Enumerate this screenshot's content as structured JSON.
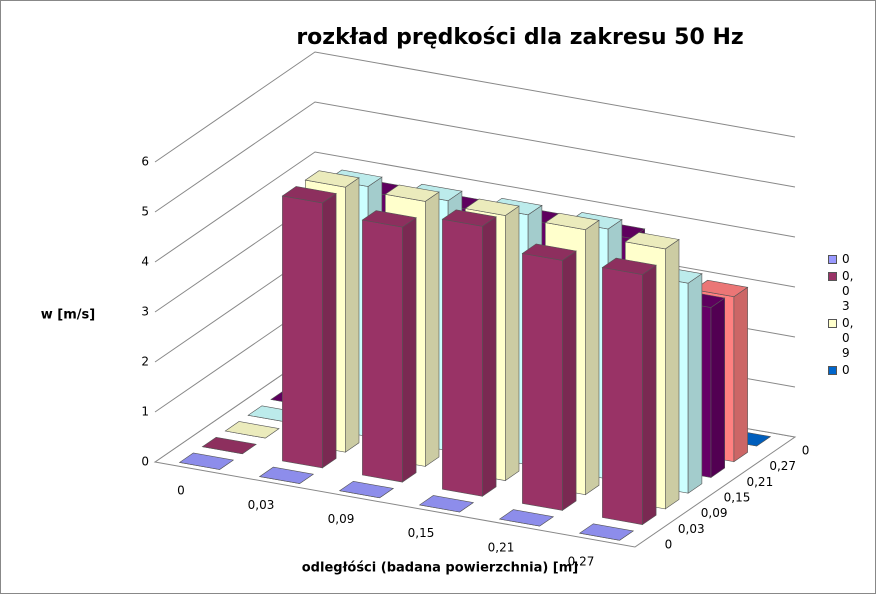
{
  "chart_data": {
    "type": "bar3d",
    "title": "rozkład prędkości  dla zakresu 50 Hz",
    "y_label": "w [m/s]",
    "x_label": "odległóści (badana powierzchnia) [m]",
    "categories": [
      "0",
      "0,03",
      "0,09",
      "0,15",
      "0,21",
      "0,27"
    ],
    "ylim": [
      0,
      6
    ],
    "yticks": [
      0,
      1,
      2,
      3,
      4,
      5,
      6
    ],
    "grid": true,
    "series": [
      {
        "name": "0",
        "color": "#9999ff",
        "values": [
          0,
          0,
          0,
          0,
          0,
          0
        ]
      },
      {
        "name": "0,03",
        "color": "#993366",
        "values": [
          0,
          5.3,
          5.1,
          5.4,
          5.0,
          5.0
        ]
      },
      {
        "name": "0,09",
        "color": "#ffffcc",
        "values": [
          0,
          5.3,
          5.3,
          5.3,
          5.3,
          5.2
        ]
      },
      {
        "name": "0,15",
        "color": "#ccffff",
        "values": [
          0,
          5.0,
          5.0,
          5.0,
          5.0,
          4.2
        ]
      },
      {
        "name": "0,21",
        "color": "#660066",
        "values": [
          0,
          4.5,
          4.5,
          4.5,
          4.5,
          3.4
        ]
      },
      {
        "name": "0,27",
        "color": "#ff8080",
        "values": [
          0,
          4.0,
          4.0,
          4.0,
          4.0,
          3.3
        ]
      },
      {
        "name": "0",
        "color": "#0066cc",
        "values": [
          0,
          0,
          0,
          0,
          0,
          0
        ]
      }
    ]
  }
}
